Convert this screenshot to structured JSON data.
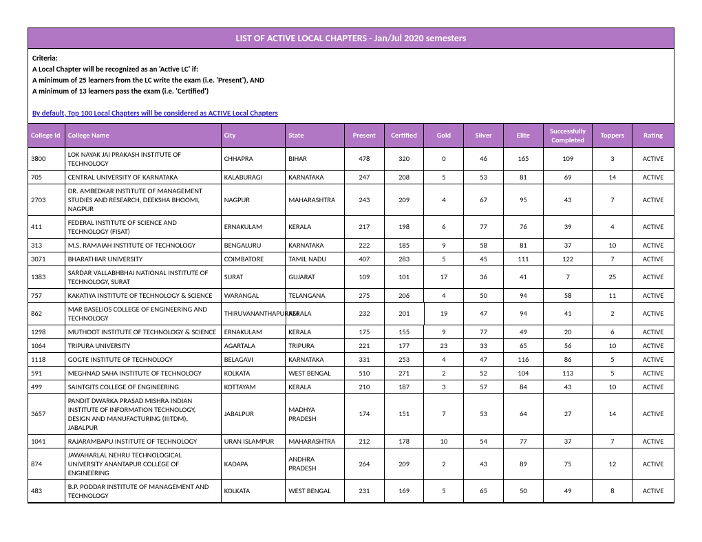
{
  "title": "LIST OF ACTIVE LOCAL CHAPTERS - Jan/Jul 2020 semesters",
  "criteria": {
    "heading": "Criteria:",
    "line1": "A Local Chapter will be recognized as an 'Active LC' if:",
    "line2": "A minimum of 25 learners from the LC write the exam (i.e. 'Present'), AND",
    "line3": "A minimum of 13 learners pass the exam (i.e. 'Certified')",
    "note": "By default, Top 100 Local Chapters will be considered as ACTIVE Local Chapters"
  },
  "columns": [
    "College Id",
    "College Name",
    "City",
    "State",
    "Present",
    "Certified",
    "Gold",
    "Silver",
    "Elite",
    "Successfully Completed",
    "Toppers",
    "Rating"
  ],
  "rows": [
    [
      "3800",
      "LOK NAYAK JAI PRAKASH INSTITUTE OF TECHNOLOGY",
      "CHHAPRA",
      "BIHAR",
      "478",
      "320",
      "0",
      "46",
      "165",
      "109",
      "3",
      "ACTIVE"
    ],
    [
      "705",
      "CENTRAL UNIVERSITY OF KARNATAKA",
      "KALABURAGI",
      "KARNATAKA",
      "247",
      "208",
      "5",
      "53",
      "81",
      "69",
      "14",
      "ACTIVE"
    ],
    [
      "2703",
      "DR. AMBEDKAR INSTITUTE OF MANAGEMENT STUDIES AND RESEARCH, DEEKSHA BHOOMI, NAGPUR",
      "NAGPUR",
      "MAHARASHTRA",
      "243",
      "209",
      "4",
      "67",
      "95",
      "43",
      "7",
      "ACTIVE"
    ],
    [
      "411",
      "FEDERAL INSTITUTE OF SCIENCE AND TECHNOLOGY (FISAT)",
      "ERNAKULAM",
      "KERALA",
      "217",
      "198",
      "6",
      "77",
      "76",
      "39",
      "4",
      "ACTIVE"
    ],
    [
      "313",
      "M.S. RAMAIAH INSTITUTE OF TECHNOLOGY",
      "BENGALURU",
      "KARNATAKA",
      "222",
      "185",
      "9",
      "58",
      "81",
      "37",
      "10",
      "ACTIVE"
    ],
    [
      "3071",
      "BHARATHIAR UNIVERSITY",
      "COIMBATORE",
      "TAMIL NADU",
      "407",
      "283",
      "5",
      "45",
      "111",
      "122",
      "7",
      "ACTIVE"
    ],
    [
      "1383",
      "SARDAR VALLABHBHAI NATIONAL INSTITUTE OF TECHNOLOGY, SURAT",
      "SURAT",
      "GUJARAT",
      "109",
      "101",
      "17",
      "36",
      "41",
      "7",
      "25",
      "ACTIVE"
    ],
    [
      "757",
      "KAKATIYA INSTITUTE OF TECHNOLOGY & SCIENCE",
      "WARANGAL",
      "TELANGANA",
      "275",
      "206",
      "4",
      "50",
      "94",
      "58",
      "11",
      "ACTIVE"
    ],
    [
      "862",
      "MAR BASELIOS COLLEGE OF ENGINEERING AND TECHNOLOGY",
      "THIRUVANANTHAPURAM",
      "KERALA",
      "232",
      "201",
      "19",
      "47",
      "94",
      "41",
      "2",
      "ACTIVE"
    ],
    [
      "1298",
      "MUTHOOT INSTITUTE OF TECHNOLOGY & SCIENCE",
      "ERNAKULAM",
      "KERALA",
      "175",
      "155",
      "9",
      "77",
      "49",
      "20",
      "6",
      "ACTIVE"
    ],
    [
      "1064",
      "TRIPURA UNIVERSITY",
      "AGARTALA",
      "TRIPURA",
      "221",
      "177",
      "23",
      "33",
      "65",
      "56",
      "10",
      "ACTIVE"
    ],
    [
      "1118",
      "GOGTE INSTITUTE OF TECHNOLOGY",
      "BELAGAVI",
      "KARNATAKA",
      "331",
      "253",
      "4",
      "47",
      "116",
      "86",
      "5",
      "ACTIVE"
    ],
    [
      "591",
      "MEGHNAD SAHA INSTITUTE OF TECHNOLOGY",
      "KOLKATA",
      "WEST BENGAL",
      "510",
      "271",
      "2",
      "52",
      "104",
      "113",
      "5",
      "ACTIVE"
    ],
    [
      "499",
      "SAINTGITS COLLEGE OF ENGINEERING",
      "KOTTAYAM",
      "KERALA",
      "210",
      "187",
      "3",
      "57",
      "84",
      "43",
      "10",
      "ACTIVE"
    ],
    [
      "3657",
      "PANDIT DWARKA PRASAD MISHRA INDIAN INSTITUTE OF INFORMATION TECHNOLOGY, DESIGN AND MANUFACTURING (IIITDM), JABALPUR",
      "JABALPUR",
      "MADHYA PRADESH",
      "174",
      "151",
      "7",
      "53",
      "64",
      "27",
      "14",
      "ACTIVE"
    ],
    [
      "1041",
      "RAJARAMBAPU INSTITUTE OF TECHNOLOGY",
      "URAN ISLAMPUR",
      "MAHARASHTRA",
      "212",
      "178",
      "10",
      "54",
      "77",
      "37",
      "7",
      "ACTIVE"
    ],
    [
      "874",
      "JAWAHARLAL NEHRU TECHNOLOGICAL UNIVERSITY ANANTAPUR COLLEGE OF ENGINEERING",
      "KADAPA",
      "ANDHRA PRADESH",
      "264",
      "209",
      "2",
      "43",
      "89",
      "75",
      "12",
      "ACTIVE"
    ],
    [
      "483",
      "B.P. PODDAR INSTITUTE OF MANAGEMENT AND TECHNOLOGY",
      "KOLKATA",
      "WEST BENGAL",
      "231",
      "169",
      "5",
      "65",
      "50",
      "49",
      "8",
      "ACTIVE"
    ]
  ]
}
